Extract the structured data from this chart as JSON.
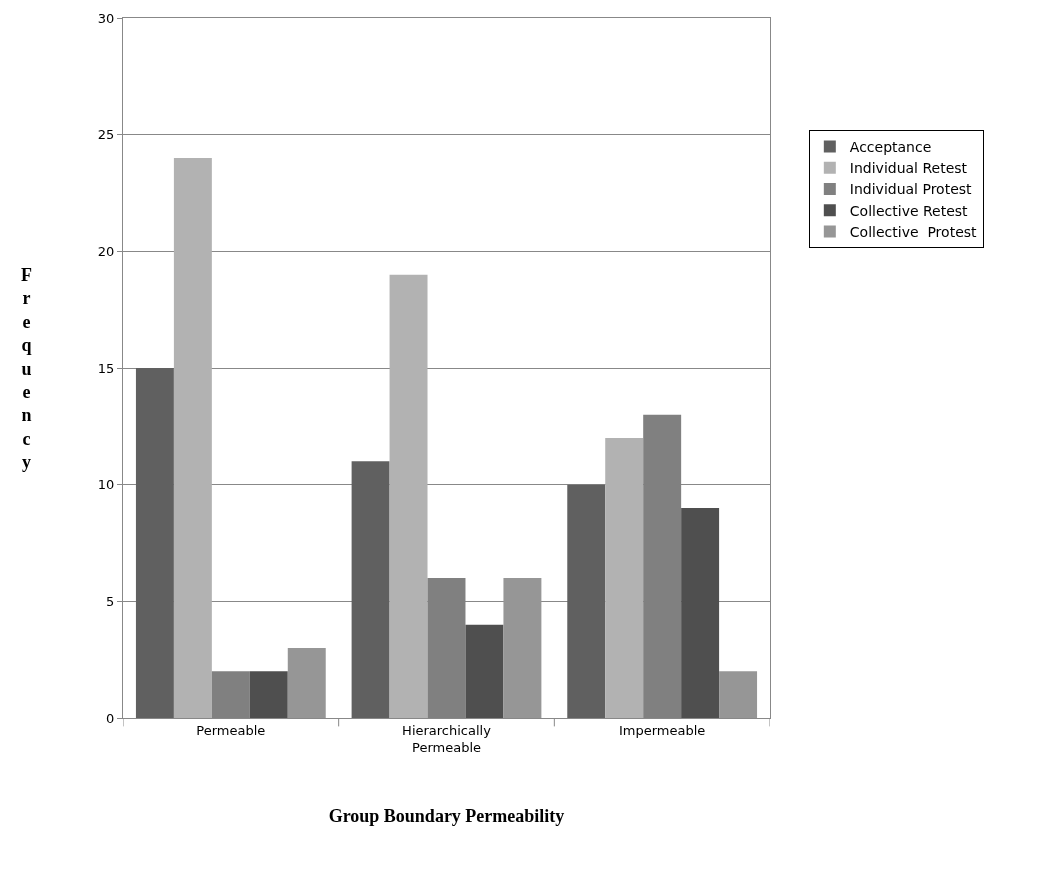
{
  "chart_data": {
    "type": "bar",
    "xlabel": "Group Boundary Permeability",
    "ylabel": "Frequency",
    "categories": [
      "Permeable",
      "Hierarchically Permeable",
      "Impermeable"
    ],
    "series": [
      {
        "name": "Acceptance",
        "color": "#606060",
        "values": [
          15,
          11,
          10
        ]
      },
      {
        "name": "Individual Retest",
        "color": "#b2b2b2",
        "values": [
          24,
          19,
          12
        ]
      },
      {
        "name": "Individual Protest",
        "color": "#808080",
        "values": [
          2,
          6,
          13
        ]
      },
      {
        "name": "Collective Retest",
        "color": "#4f4f4f",
        "values": [
          2,
          4,
          9
        ]
      },
      {
        "name": "Collective  Protest",
        "color": "#969696",
        "values": [
          3,
          6,
          2
        ]
      }
    ],
    "ylim": [
      0,
      30
    ],
    "yticks": [
      0,
      5,
      10,
      15,
      20,
      25,
      30
    ],
    "grid": "y",
    "legend": "right"
  }
}
